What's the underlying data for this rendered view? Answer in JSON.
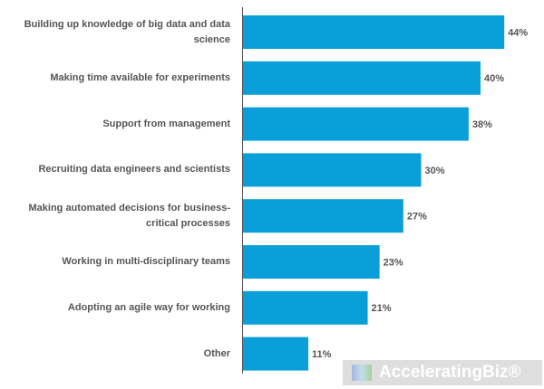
{
  "chart_data": {
    "type": "bar",
    "orientation": "horizontal",
    "categories": [
      "Building up knowledge of big data and data science",
      "Making time available for experiments",
      "Support from management",
      "Recruiting data engineers and scientists",
      "Making automated decisions for business-critical processes",
      "Working in multi-disciplinary teams",
      "Adopting an agile way for working",
      "Other"
    ],
    "values": [
      44,
      40,
      38,
      30,
      27,
      23,
      21,
      11
    ],
    "value_labels": [
      "44%",
      "40%",
      "38%",
      "30%",
      "27%",
      "23%",
      "21%",
      "11%"
    ],
    "color": "#0a9fd8"
  },
  "watermark": "AcceleratingBiz®"
}
